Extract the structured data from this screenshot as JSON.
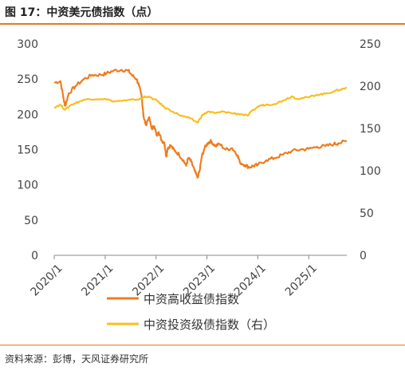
{
  "header": {
    "title": "图 17：中资美元债指数（点）"
  },
  "footer": {
    "source": "资料来源：彭博，天风证券研究所"
  },
  "colors": {
    "accent": "#e07b22",
    "series_high_yield": "#ee7d1f",
    "series_investment_grade": "#f9bf1e"
  },
  "chart_data": {
    "type": "line",
    "title": "中资美元债指数（点）",
    "xlabel": "",
    "ylabel": "",
    "y_left": {
      "min": 0,
      "max": 300,
      "ticks": [
        0,
        50,
        100,
        150,
        200,
        250,
        300
      ]
    },
    "y_right": {
      "min": 0,
      "max": 250,
      "ticks": [
        0,
        50,
        100,
        150,
        200,
        250
      ]
    },
    "x_range": [
      "2020-01-01",
      "2025-10-01"
    ],
    "x_ticks": [
      {
        "label": "2020/1",
        "date": "2020-01-01"
      },
      {
        "label": "2021/1",
        "date": "2021-01-01"
      },
      {
        "label": "2022/1",
        "date": "2022-01-01"
      },
      {
        "label": "2023/1",
        "date": "2023-01-01"
      },
      {
        "label": "2024/1",
        "date": "2024-01-01"
      },
      {
        "label": "2025/1",
        "date": "2025-01-01"
      }
    ],
    "grid": false,
    "legend_position": "bottom",
    "series": [
      {
        "name": "中资高收益债指数",
        "axis": "left",
        "color": "#ee7d1f",
        "points": [
          [
            "2020-01-01",
            245
          ],
          [
            "2020-02-15",
            247
          ],
          [
            "2020-03-10",
            220
          ],
          [
            "2020-03-20",
            212
          ],
          [
            "2020-04-15",
            230
          ],
          [
            "2020-06-01",
            240
          ],
          [
            "2020-08-01",
            250
          ],
          [
            "2020-10-01",
            256
          ],
          [
            "2020-12-01",
            256
          ],
          [
            "2021-01-10",
            258
          ],
          [
            "2021-03-01",
            262
          ],
          [
            "2021-05-01",
            263
          ],
          [
            "2021-06-15",
            262
          ],
          [
            "2021-07-15",
            255
          ],
          [
            "2021-08-15",
            250
          ],
          [
            "2021-09-01",
            240
          ],
          [
            "2021-09-20",
            225
          ],
          [
            "2021-10-05",
            195
          ],
          [
            "2021-10-20",
            185
          ],
          [
            "2021-11-10",
            196
          ],
          [
            "2021-12-01",
            180
          ],
          [
            "2021-12-20",
            183
          ],
          [
            "2022-01-05",
            170
          ],
          [
            "2022-01-20",
            175
          ],
          [
            "2022-02-10",
            163
          ],
          [
            "2022-03-01",
            160
          ],
          [
            "2022-03-15",
            140
          ],
          [
            "2022-03-25",
            152
          ],
          [
            "2022-04-15",
            156
          ],
          [
            "2022-05-15",
            148
          ],
          [
            "2022-06-15",
            143
          ],
          [
            "2022-07-15",
            135
          ],
          [
            "2022-08-05",
            127
          ],
          [
            "2022-08-20",
            138
          ],
          [
            "2022-09-10",
            133
          ],
          [
            "2022-10-05",
            120
          ],
          [
            "2022-10-25",
            110
          ],
          [
            "2022-11-10",
            120
          ],
          [
            "2022-11-25",
            140
          ],
          [
            "2022-12-15",
            152
          ],
          [
            "2023-01-10",
            160
          ],
          [
            "2023-01-31",
            162
          ],
          [
            "2023-03-01",
            155
          ],
          [
            "2023-04-01",
            158
          ],
          [
            "2023-05-15",
            150
          ],
          [
            "2023-07-01",
            152
          ],
          [
            "2023-08-10",
            142
          ],
          [
            "2023-08-25",
            132
          ],
          [
            "2023-10-01",
            128
          ],
          [
            "2023-11-01",
            125
          ],
          [
            "2023-12-01",
            127
          ],
          [
            "2024-01-01",
            128
          ],
          [
            "2024-03-01",
            135
          ],
          [
            "2024-05-01",
            138
          ],
          [
            "2024-07-01",
            143
          ],
          [
            "2024-09-01",
            148
          ],
          [
            "2024-11-01",
            150
          ],
          [
            "2025-01-01",
            151
          ],
          [
            "2025-03-01",
            154
          ],
          [
            "2025-05-01",
            155
          ],
          [
            "2025-07-01",
            158
          ],
          [
            "2025-08-01",
            159
          ],
          [
            "2025-10-01",
            162
          ]
        ]
      },
      {
        "name": "中资投资级债指数（右）",
        "axis": "right",
        "color": "#f9bf1e",
        "points": [
          [
            "2020-01-01",
            175
          ],
          [
            "2020-02-15",
            178
          ],
          [
            "2020-03-20",
            172
          ],
          [
            "2020-05-01",
            178
          ],
          [
            "2020-07-01",
            182
          ],
          [
            "2020-09-01",
            185
          ],
          [
            "2021-01-01",
            185
          ],
          [
            "2021-03-01",
            182
          ],
          [
            "2021-06-01",
            183
          ],
          [
            "2021-08-01",
            184
          ],
          [
            "2021-09-15",
            185
          ],
          [
            "2021-10-15",
            188
          ],
          [
            "2021-12-01",
            186
          ],
          [
            "2022-01-15",
            182
          ],
          [
            "2022-03-01",
            175
          ],
          [
            "2022-05-01",
            170
          ],
          [
            "2022-07-01",
            165
          ],
          [
            "2022-09-01",
            162
          ],
          [
            "2022-10-25",
            157
          ],
          [
            "2022-11-25",
            165
          ],
          [
            "2023-01-10",
            170
          ],
          [
            "2023-03-01",
            168
          ],
          [
            "2023-05-01",
            170
          ],
          [
            "2023-07-01",
            168
          ],
          [
            "2023-09-01",
            167
          ],
          [
            "2023-10-20",
            165
          ],
          [
            "2023-12-01",
            172
          ],
          [
            "2024-01-15",
            177
          ],
          [
            "2024-03-01",
            178
          ],
          [
            "2024-05-01",
            179
          ],
          [
            "2024-07-01",
            183
          ],
          [
            "2024-09-01",
            188
          ],
          [
            "2024-10-15",
            185
          ],
          [
            "2025-01-01",
            187
          ],
          [
            "2025-03-01",
            190
          ],
          [
            "2025-05-01",
            191
          ],
          [
            "2025-07-01",
            194
          ],
          [
            "2025-08-15",
            196
          ],
          [
            "2025-10-01",
            198
          ]
        ]
      }
    ]
  }
}
